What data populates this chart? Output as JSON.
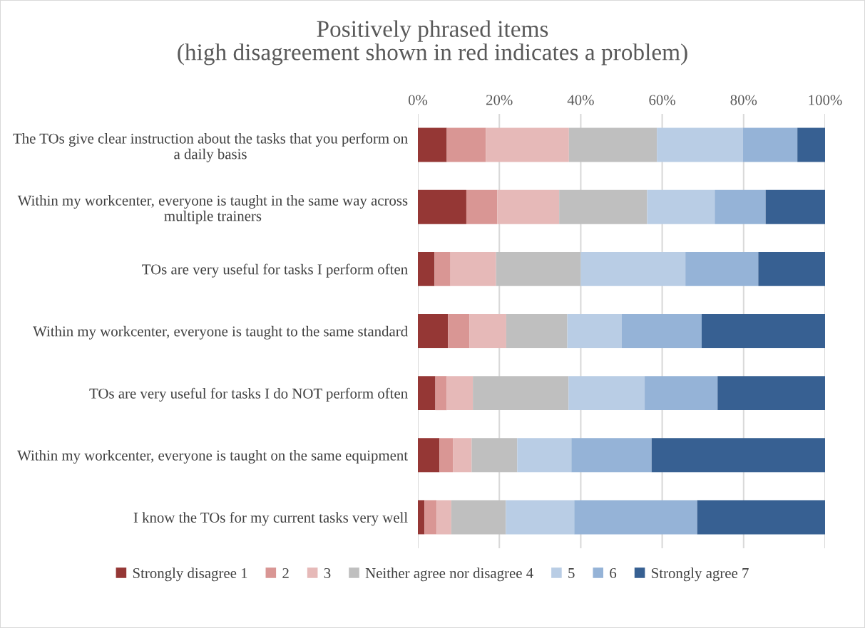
{
  "chart_data": {
    "type": "bar",
    "orientation": "horizontal",
    "stacked": true,
    "title": "Positively phrased items\n(high disagreement shown in red indicates a problem)",
    "categories": [
      "The TOs give clear instruction about the tasks that you perform on a daily basis",
      "Within my workcenter, everyone is taught in the same way across multiple trainers",
      "TOs are very useful for tasks I perform often",
      "Within my workcenter, everyone is taught to the same standard",
      "TOs are very useful for tasks I do NOT perform often",
      "Within my workcenter, everyone is taught on the same equipment",
      "I know the TOs for my current tasks very well"
    ],
    "series": [
      {
        "name": "Strongly disagree 1",
        "color": "#953735",
        "values": [
          7.1,
          11.9,
          4.1,
          7.4,
          4.3,
          5.3,
          1.6
        ]
      },
      {
        "name": "2",
        "color": "#d99694",
        "values": [
          9.6,
          7.6,
          3.9,
          5.3,
          2.8,
          3.3,
          3.0
        ]
      },
      {
        "name": "3",
        "color": "#e6b9b8",
        "values": [
          20.4,
          15.2,
          11.2,
          9.0,
          6.4,
          4.6,
          3.6
        ]
      },
      {
        "name": "Neither agree nor disagree 4",
        "color": "#bfbfbf",
        "values": [
          21.6,
          21.6,
          20.8,
          15.0,
          23.5,
          11.2,
          13.4
        ]
      },
      {
        "name": "5",
        "color": "#b9cde5",
        "values": [
          21.1,
          16.6,
          25.7,
          13.3,
          18.7,
          13.3,
          16.8
        ]
      },
      {
        "name": "6",
        "color": "#95b3d7",
        "values": [
          13.4,
          12.5,
          17.9,
          19.7,
          17.9,
          19.7,
          30.2
        ]
      },
      {
        "name": "Strongly agree 7",
        "color": "#376092",
        "values": [
          6.8,
          14.6,
          16.4,
          30.3,
          26.4,
          42.6,
          31.4
        ]
      }
    ],
    "xlim": [
      0,
      100
    ],
    "xticks": [
      {
        "value": 0,
        "label": "0%"
      },
      {
        "value": 20,
        "label": "20%"
      },
      {
        "value": 40,
        "label": "40%"
      },
      {
        "value": 60,
        "label": "60%"
      },
      {
        "value": 80,
        "label": "80%"
      },
      {
        "value": 100,
        "label": "100%"
      }
    ],
    "grid": "x",
    "legend": "bottom"
  }
}
